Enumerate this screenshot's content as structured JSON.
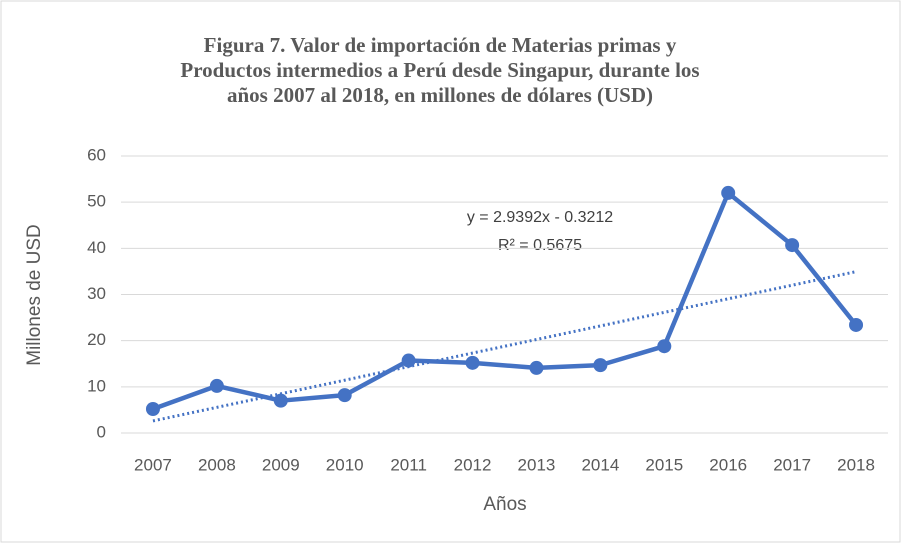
{
  "chart_data": {
    "type": "line",
    "title": [
      "Figura 7. Valor de importación de Materias primas y",
      "Productos intermedios a Perú desde Singapur, durante los",
      "años 2007 al 2018, en millones de dólares (USD)"
    ],
    "x_label": "Años",
    "y_label": "Millones de USD",
    "categories": [
      "2007",
      "2008",
      "2009",
      "2010",
      "2011",
      "2012",
      "2013",
      "2014",
      "2015",
      "2016",
      "2017",
      "2018"
    ],
    "series": [
      {
        "name": "Valor de importación",
        "color": "#4472c4",
        "values": [
          5.2,
          10.2,
          7.0,
          8.2,
          15.7,
          15.2,
          14.1,
          14.7,
          18.8,
          52.0,
          40.7,
          23.4
        ]
      }
    ],
    "trendline": {
      "slope": 2.9392,
      "intercept": -0.3212,
      "equation": "y = 2.9392x - 0.3212",
      "r2_label": "R² = 0.5675",
      "color": "#4472c4"
    },
    "ylim": [
      0,
      60
    ],
    "yticks": [
      0,
      10,
      20,
      30,
      40,
      50,
      60
    ],
    "grid": true
  }
}
